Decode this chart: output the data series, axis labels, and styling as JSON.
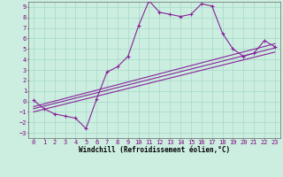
{
  "xlabel": "Windchill (Refroidissement éolien,°C)",
  "xlim": [
    -0.5,
    23.5
  ],
  "ylim": [
    -3.5,
    9.5
  ],
  "xticks": [
    0,
    1,
    2,
    3,
    4,
    5,
    6,
    7,
    8,
    9,
    10,
    11,
    12,
    13,
    14,
    15,
    16,
    17,
    18,
    19,
    20,
    21,
    22,
    23
  ],
  "yticks": [
    -3,
    -2,
    -1,
    0,
    1,
    2,
    3,
    4,
    5,
    6,
    7,
    8,
    9
  ],
  "background_color": "#cceee0",
  "grid_color": "#aaddcc",
  "line_color": "#882299",
  "jagged_x": [
    0,
    1,
    2,
    3,
    4,
    5,
    6,
    7,
    8,
    9,
    10,
    11,
    12,
    13,
    14,
    15,
    16,
    17,
    18,
    19,
    20,
    21,
    22,
    23
  ],
  "jagged_y": [
    0.1,
    -0.7,
    -1.2,
    -1.4,
    -1.6,
    -2.6,
    0.2,
    2.8,
    3.3,
    4.3,
    7.2,
    9.6,
    8.5,
    8.3,
    8.1,
    8.3,
    9.3,
    9.1,
    6.5,
    5.0,
    4.3,
    4.6,
    5.8,
    5.2
  ],
  "line2_x": [
    0,
    23
  ],
  "line2_y": [
    -0.5,
    5.5
  ],
  "line3_x": [
    0,
    23
  ],
  "line3_y": [
    -0.7,
    5.1
  ],
  "line4_x": [
    0,
    23
  ],
  "line4_y": [
    -1.0,
    4.7
  ]
}
